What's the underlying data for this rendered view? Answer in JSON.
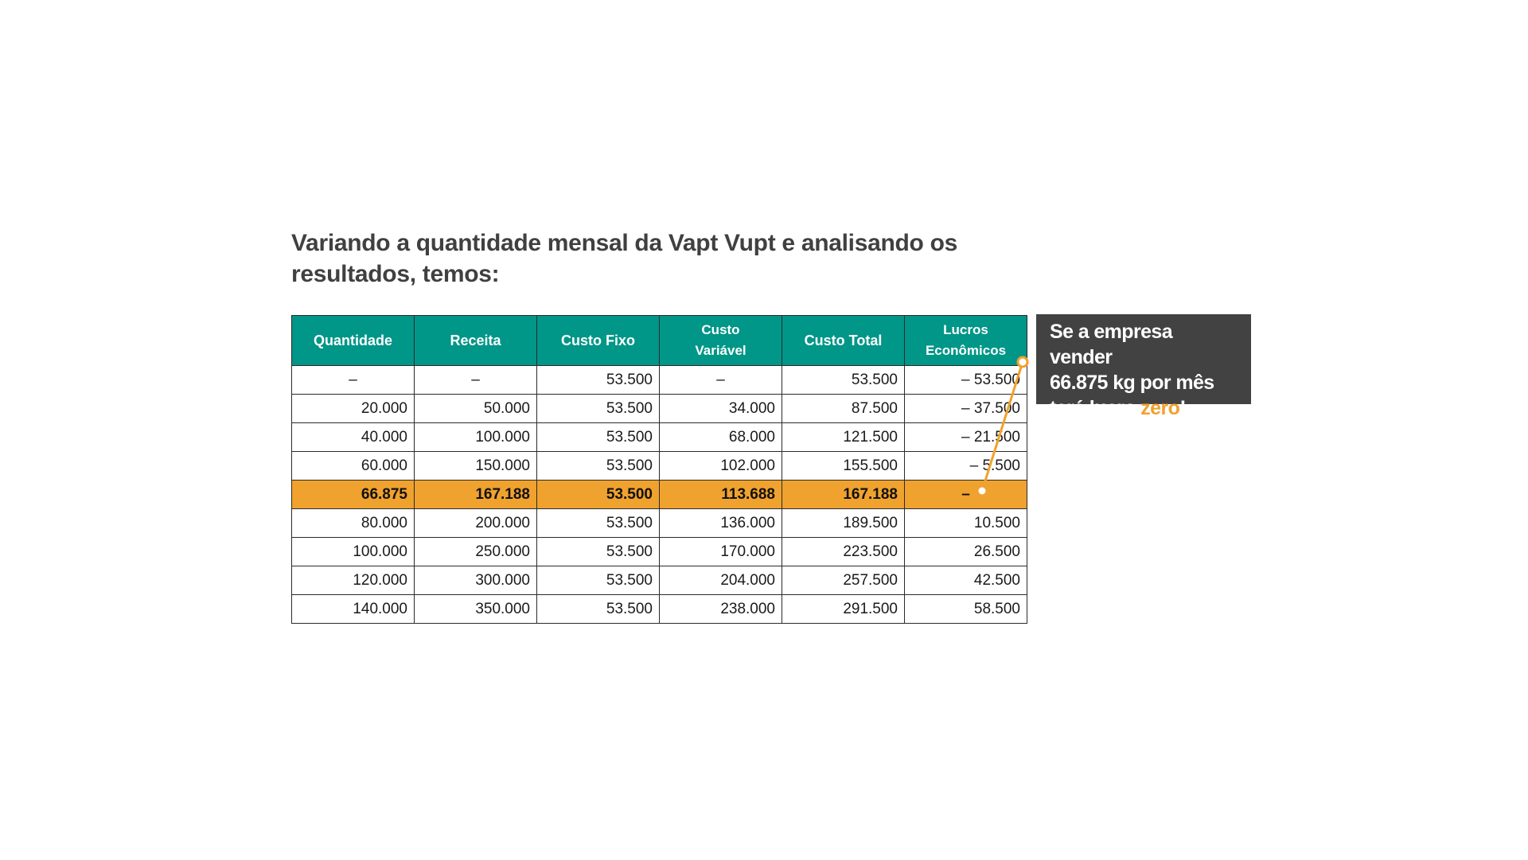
{
  "title": {
    "line1": "Variando a quantidade mensal da Vapt Vupt e analisando os",
    "line2": "resultados, temos:"
  },
  "table": {
    "headers": [
      [
        "Quantidade"
      ],
      [
        "Receita"
      ],
      [
        "Custo Fixo"
      ],
      [
        "Custo",
        "Variável"
      ],
      [
        "Custo Total"
      ],
      [
        "Lucros",
        "Econômicos"
      ]
    ],
    "rows": [
      [
        "–",
        "–",
        "53.500",
        "–",
        "53.500",
        "– 53.500"
      ],
      [
        "20.000",
        "50.000",
        "53.500",
        "34.000",
        "87.500",
        "– 37.500"
      ],
      [
        "40.000",
        "100.000",
        "53.500",
        "68.000",
        "121.500",
        "– 21.500"
      ],
      [
        "60.000",
        "150.000",
        "53.500",
        "102.000",
        "155.500",
        "– 5.500"
      ],
      [
        "66.875",
        "167.188",
        "53.500",
        "113.688",
        "167.188",
        "–"
      ],
      [
        "80.000",
        "200.000",
        "53.500",
        "136.000",
        "189.500",
        "10.500"
      ],
      [
        "100.000",
        "250.000",
        "53.500",
        "170.000",
        "223.500",
        "26.500"
      ],
      [
        "120.000",
        "300.000",
        "53.500",
        "204.000",
        "257.500",
        "42.500"
      ],
      [
        "140.000",
        "350.000",
        "53.500",
        "238.000",
        "291.500",
        "58.500"
      ]
    ],
    "highlight_row_index": 4
  },
  "callout": {
    "line1": "Se a empresa vender",
    "line2": "66.875 kg por mês",
    "line3_prefix": "terá lucro ",
    "line3_accent": "zero",
    "line3_suffix": "!"
  },
  "colors": {
    "header_bg": "#009688",
    "highlight_bg": "#f0a22e",
    "callout_bg": "#424242",
    "accent": "#f0a22e"
  }
}
